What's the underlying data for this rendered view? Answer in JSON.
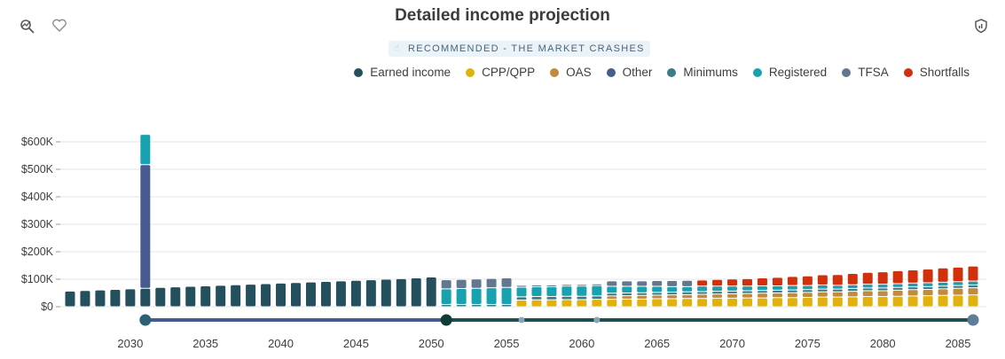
{
  "header": {
    "title": "Detailed income projection",
    "scenario": "RECOMMENDED - THE MARKET CRASHES"
  },
  "icons": {
    "left": [
      "chart-icon",
      "heart-icon"
    ],
    "right": "shield-icon"
  },
  "chart_data": {
    "type": "bar",
    "stacked": true,
    "title": "Detailed income projection",
    "xlabel": "",
    "ylabel": "",
    "x": [
      2026,
      2027,
      2028,
      2029,
      2030,
      2031,
      2032,
      2033,
      2034,
      2035,
      2036,
      2037,
      2038,
      2039,
      2040,
      2041,
      2042,
      2043,
      2044,
      2045,
      2046,
      2047,
      2048,
      2049,
      2050,
      2051,
      2052,
      2053,
      2054,
      2055,
      2056,
      2057,
      2058,
      2059,
      2060,
      2061,
      2062,
      2063,
      2064,
      2065,
      2066,
      2067,
      2068,
      2069,
      2070,
      2071,
      2072,
      2073,
      2074,
      2075,
      2076,
      2077,
      2078,
      2079,
      2080,
      2081,
      2082,
      2083,
      2084,
      2085,
      2086
    ],
    "xticks": [
      2030,
      2035,
      2040,
      2045,
      2050,
      2055,
      2060,
      2065,
      2070,
      2075,
      2080,
      2085
    ],
    "xtick_labels": [
      "2030",
      "2035",
      "2040",
      "2045",
      "2050",
      "2055",
      "2060",
      "2065",
      "2070",
      "2075",
      "2080",
      "2085"
    ],
    "ylim": [
      0,
      650000
    ],
    "yticks": [
      0,
      100000,
      200000,
      300000,
      400000,
      500000,
      600000
    ],
    "ytick_labels": [
      "$0",
      "$100K",
      "$200K",
      "$300K",
      "$400K",
      "$500K",
      "$600K"
    ],
    "grid": true,
    "legend_position": "top-right",
    "series": [
      {
        "name": "Earned income",
        "color": "#244f5c",
        "values": [
          57000,
          59000,
          61000,
          63000,
          65000,
          67000,
          70000,
          72000,
          74000,
          76000,
          78000,
          80000,
          82000,
          84000,
          86000,
          88000,
          90000,
          92000,
          94000,
          96000,
          98000,
          100000,
          102000,
          105000,
          108000,
          0,
          0,
          0,
          0,
          0,
          0,
          0,
          0,
          0,
          0,
          0,
          0,
          0,
          0,
          0,
          0,
          0,
          0,
          0,
          0,
          0,
          0,
          0,
          0,
          0,
          0,
          0,
          0,
          0,
          0,
          0,
          0,
          0,
          0,
          0,
          0
        ]
      },
      {
        "name": "CPP/QPP",
        "color": "#e1b20d",
        "values": [
          0,
          0,
          0,
          0,
          0,
          0,
          0,
          0,
          0,
          0,
          0,
          0,
          0,
          0,
          0,
          0,
          0,
          0,
          0,
          0,
          0,
          0,
          0,
          0,
          0,
          0,
          0,
          0,
          0,
          0,
          24000,
          25000,
          25000,
          26000,
          26000,
          27000,
          27000,
          28000,
          28000,
          29000,
          29000,
          30000,
          30000,
          31000,
          31000,
          32000,
          32000,
          33000,
          33000,
          34000,
          35000,
          35000,
          36000,
          37000,
          37000,
          38000,
          39000,
          40000,
          41000,
          42000,
          43000
        ]
      },
      {
        "name": "OAS",
        "color": "#c28a3c",
        "values": [
          0,
          0,
          0,
          0,
          0,
          0,
          0,
          0,
          0,
          0,
          0,
          0,
          0,
          0,
          0,
          0,
          0,
          0,
          0,
          0,
          0,
          0,
          0,
          0,
          0,
          0,
          0,
          0,
          0,
          0,
          0,
          0,
          0,
          0,
          0,
          0,
          12000,
          12000,
          13000,
          13000,
          14000,
          14000,
          15000,
          15000,
          16000,
          16000,
          17000,
          17000,
          18000,
          18000,
          19000,
          19000,
          20000,
          21000,
          21000,
          22000,
          23000,
          23000,
          24000,
          25000,
          26000
        ]
      },
      {
        "name": "Other",
        "color": "#475b8f",
        "values": [
          0,
          0,
          0,
          0,
          0,
          450000,
          0,
          0,
          0,
          0,
          0,
          0,
          0,
          0,
          0,
          0,
          0,
          0,
          0,
          0,
          0,
          0,
          0,
          0,
          0,
          0,
          0,
          0,
          0,
          0,
          0,
          0,
          0,
          0,
          0,
          0,
          0,
          0,
          0,
          0,
          0,
          0,
          0,
          0,
          0,
          0,
          0,
          0,
          0,
          0,
          0,
          0,
          0,
          0,
          0,
          0,
          0,
          0,
          0,
          0,
          0
        ]
      },
      {
        "name": "Minimums",
        "color": "#3b7c86",
        "values": [
          0,
          0,
          0,
          0,
          0,
          0,
          0,
          0,
          0,
          0,
          0,
          0,
          0,
          0,
          0,
          0,
          0,
          0,
          0,
          0,
          0,
          0,
          0,
          0,
          0,
          8000,
          8000,
          8000,
          8000,
          8000,
          12000,
          12000,
          12000,
          12000,
          12000,
          12000,
          10000,
          10000,
          10000,
          10000,
          10000,
          10000,
          10000,
          10000,
          10000,
          10000,
          10000,
          10000,
          10000,
          10000,
          10000,
          10000,
          10000,
          10000,
          10000,
          10000,
          10000,
          10000,
          10000,
          10000,
          10000
        ]
      },
      {
        "name": "Registered",
        "color": "#18a2b0",
        "values": [
          0,
          0,
          0,
          0,
          0,
          110000,
          0,
          0,
          0,
          0,
          0,
          0,
          0,
          0,
          0,
          0,
          0,
          0,
          0,
          0,
          0,
          0,
          0,
          0,
          0,
          57000,
          58000,
          59000,
          61000,
          62000,
          35000,
          36000,
          36000,
          37000,
          37000,
          38000,
          25000,
          24000,
          23000,
          22000,
          20000,
          19000,
          18000,
          17000,
          16000,
          15000,
          15000,
          14000,
          14000,
          13000,
          13000,
          12000,
          12000,
          12000,
          12000,
          12000,
          12000,
          12000,
          12000,
          12000,
          12000
        ]
      },
      {
        "name": "TFSA",
        "color": "#63788e",
        "values": [
          0,
          0,
          0,
          0,
          0,
          0,
          0,
          0,
          0,
          0,
          0,
          0,
          0,
          0,
          0,
          0,
          0,
          0,
          0,
          0,
          0,
          0,
          0,
          0,
          0,
          33000,
          33000,
          34000,
          34000,
          35000,
          7000,
          6000,
          6000,
          6000,
          6000,
          6000,
          20000,
          20000,
          20000,
          21000,
          22000,
          23000,
          2000,
          2000,
          2000,
          2000,
          2000,
          2000,
          2000,
          2000,
          2000,
          2000,
          2000,
          2000,
          2000,
          2000,
          2000,
          2000,
          2000,
          2000,
          2000
        ]
      },
      {
        "name": "Shortfalls",
        "color": "#d2300d",
        "values": [
          0,
          0,
          0,
          0,
          0,
          0,
          0,
          0,
          0,
          0,
          0,
          0,
          0,
          0,
          0,
          0,
          0,
          0,
          0,
          0,
          0,
          0,
          0,
          0,
          0,
          0,
          0,
          0,
          0,
          0,
          0,
          0,
          0,
          0,
          0,
          0,
          0,
          0,
          0,
          0,
          0,
          0,
          22000,
          24000,
          26000,
          27000,
          29000,
          31000,
          33000,
          35000,
          37000,
          39000,
          41000,
          43000,
          45000,
          47000,
          48000,
          50000,
          52000,
          53000,
          55000
        ]
      }
    ],
    "timeline": {
      "segments": [
        {
          "from": 2031,
          "to": 2051,
          "color": "#475b8f"
        },
        {
          "from": 2051,
          "to": 2086,
          "color": "#1f4f4f"
        }
      ],
      "markers": [
        {
          "year": 2031,
          "kind": "large",
          "color": "#2c6075"
        },
        {
          "year": 2051,
          "kind": "large",
          "color": "#113c36"
        },
        {
          "year": 2056,
          "kind": "small",
          "color": "#8aa4b6"
        },
        {
          "year": 2061,
          "kind": "small",
          "color": "#8aa4b6"
        },
        {
          "year": 2086,
          "kind": "large",
          "color": "#5e7d96"
        }
      ]
    }
  }
}
